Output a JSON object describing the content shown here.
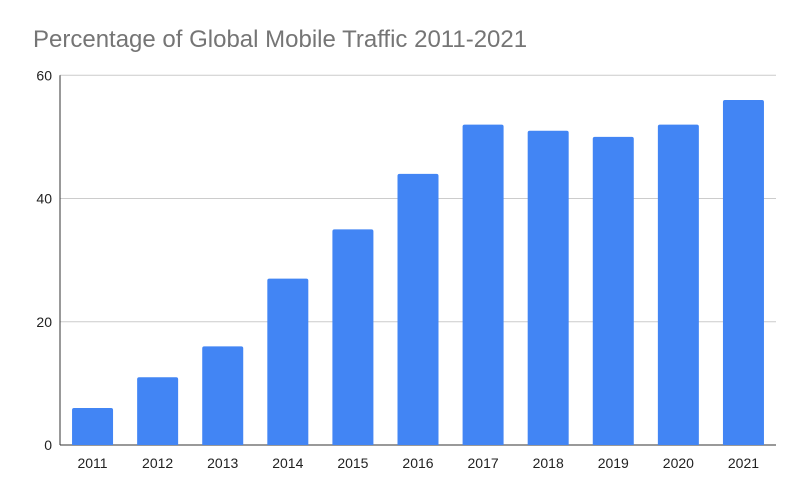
{
  "chart_data": {
    "type": "bar",
    "title": "Percentage of Global Mobile Traffic 2011-2021",
    "xlabel": "",
    "ylabel": "",
    "categories": [
      "2011",
      "2012",
      "2013",
      "2014",
      "2015",
      "2016",
      "2017",
      "2018",
      "2019",
      "2020",
      "2021"
    ],
    "values": [
      6,
      11,
      16,
      27,
      35,
      44,
      52,
      51,
      50,
      52,
      56
    ],
    "ylim": [
      0,
      60
    ],
    "yticks": [
      "0",
      "20",
      "40",
      "60"
    ],
    "grid": true,
    "legend": "none",
    "bar_color": "#4285f4"
  }
}
